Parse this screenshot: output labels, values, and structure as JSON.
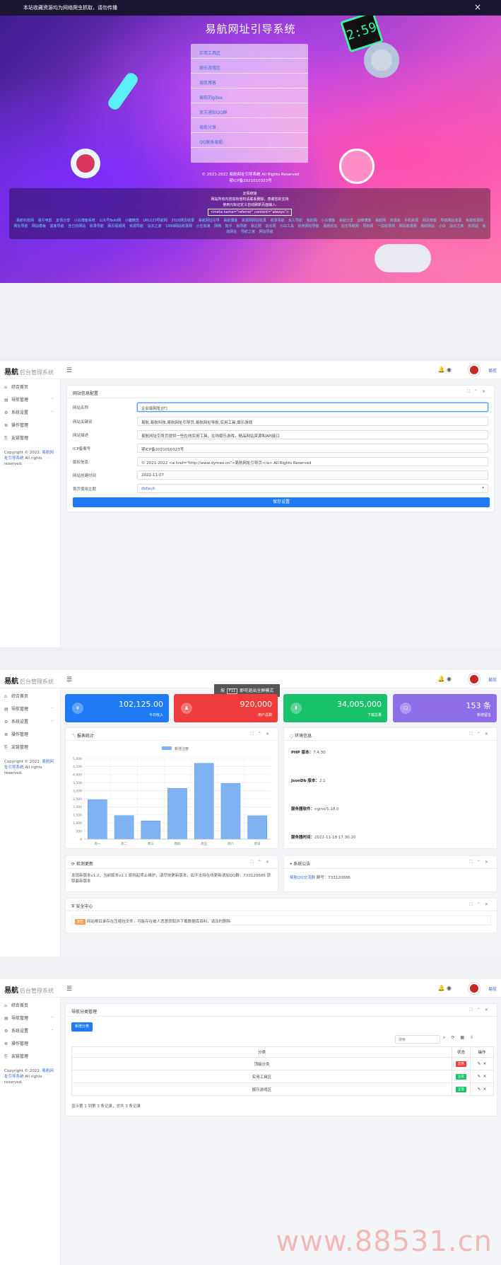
{
  "hero": {
    "notice": "本站收藏资源均为网络爬虫抓取，请勿传播",
    "close": "×",
    "title": "易航网址引导系统",
    "menu": [
      "实用工具区",
      "娱乐游戏区",
      "易航博客",
      "易航的gitee",
      "官方通知QQ群",
      "易航分享",
      "QQ联系易航"
    ],
    "copyright": "© 2021-2022 易航网址引导系统 All Rights Reserved",
    "icp": "鄂ICP备2021010323号",
    "links_title": "友情链接",
    "links_notice": "网站所有内容如有侵权请联系删除，感谢您的支持",
    "links_hint": "使用元标记定义自动刷新页面输入:",
    "meta_code": "<meta name=\"referrer\" content=\"always\">",
    "friends": "易航科技网 强引电影 友情分享 小白博客系统 公众号Boki网 小婕精选 URL123导航网 2020网页收录 易航网址引导 易航博客 资源网网站收录 收录导航 永久导航 我的网 小白博客 易航分享 运维博客 易航网 资源库 手机资源 网页博客 导航网站收录 免费收录网 网址导航 网站模板 黑客导航 自己的网站 收录导航 网页视频网 资源导航 站长之家 1999网站收录网 小五加速 网络 知乎 易导航 易达网 站长网 小白工具 好用网址导航 易航论坛 站长导航网 导航网 一站收录网 网站收录网 易航网站 小白 站长之家 资源站 易航网址 导航之家 网站导航"
  },
  "admin": {
    "logo_main": "易航",
    "logo_sub": "后台管理系统",
    "user": "易航",
    "menu": [
      {
        "icon": "⌂",
        "label": "综合首页",
        "arrow": false
      },
      {
        "icon": "▤",
        "label": "导航管理",
        "arrow": true
      },
      {
        "icon": "⚙",
        "label": "系统设置",
        "arrow": true
      },
      {
        "icon": "≣",
        "label": "操作管理",
        "arrow": false
      },
      {
        "icon": "⎘",
        "label": "友链管理",
        "arrow": false
      }
    ],
    "copyright_pre": "Copyright © 2022.",
    "copyright_link": "易航网址引导系统",
    "copyright_post": "All rights reserved."
  },
  "settings": {
    "title": "网站信息配置",
    "fields": [
      {
        "label": "网站名称",
        "value": "企业级网址[IT]"
      },
      {
        "label": "网站关键词",
        "value": "易航,易航科技,易航网址引导页,易航网址导航,实用工具,娱乐游戏"
      },
      {
        "label": "网站描述",
        "value": "易航网址引导页提供一些在线实用工具，在线娱乐游戏，精品网站资源和API接口"
      },
      {
        "label": "ICP备案号",
        "value": "鄂ICP备2021010323号"
      },
      {
        "label": "版权信息",
        "value": "© 2021-2022 <a href=\"http://www.dymao.cn\">易航网址引导页</a> All Rights Reserved"
      },
      {
        "label": "网站创建时间",
        "value": "2022-11-07"
      },
      {
        "label": "首页使用主题",
        "value": "default"
      }
    ],
    "save": "保存设置"
  },
  "dashboard": {
    "tiles": [
      {
        "value": "102,125.00",
        "label": "今日收入",
        "icon": "¥",
        "color": "#1e7bf5"
      },
      {
        "value": "920,000",
        "label": "用户总数",
        "icon": "♟",
        "color": "#ef3b3b"
      },
      {
        "value": "34,005,000",
        "label": "下载总量",
        "icon": "⬇",
        "color": "#18c26a"
      },
      {
        "value": "153 条",
        "label": "新增留言",
        "icon": "☐",
        "color": "#8d6ee8"
      }
    ],
    "tooltip_pre": "按",
    "tooltip_key": "F11",
    "tooltip_post": "即可退出全屏模式",
    "chart_title": "报表统计",
    "env_title": "环境信息",
    "env": [
      {
        "k": "PHP 版本：",
        "v": "7.4.30"
      },
      {
        "k": "JsonDb 版本：",
        "v": "2.1"
      },
      {
        "k": "服务器软件：",
        "v": "nginx/1.18.0"
      },
      {
        "k": "服务器时间：",
        "v": "2022-11-18 17:30:20"
      }
    ],
    "update_title": "检测更新",
    "update_text": "发现新版本v1.2，当前版本v1.1 原则起项止维护，请尽快更新版本，如不支持在线更新请加QQ群：733120686 获取最新版本",
    "notice_title": "系统公告",
    "notice_link": "易航QQ交流群",
    "notice_text": "群号：733120686",
    "security_title": "安全中心",
    "security_badge": "警告",
    "security_text": "网站根目录存在压缩包文件，可能存在被人恶意获取并下载数据库资料，请及时删除"
  },
  "chart_data": {
    "type": "bar",
    "legend": "新增注册",
    "categories": [
      "周一",
      "周二",
      "周三",
      "周四",
      "周五",
      "周六",
      "周日"
    ],
    "values": [
      2450,
      1460,
      1130,
      3150,
      4700,
      3450,
      1450
    ],
    "ylim": [
      0,
      5000
    ],
    "yticks": [
      "5,000",
      "4,500",
      "4,000",
      "3,500",
      "3,000",
      "2,500",
      "2,000",
      "1,500",
      "1,000",
      "500",
      "0"
    ],
    "color": "#7fb2f0"
  },
  "nav": {
    "title": "导航分类管理",
    "add": "新增分类",
    "search_placeholder": "搜索",
    "headers": [
      "分类",
      "状态",
      "操作"
    ],
    "rows": [
      {
        "name": "顶级分类",
        "status": "禁用",
        "color": "#ef3b3b"
      },
      {
        "name": "实用工具区",
        "status": "正常",
        "color": "#18c26a"
      },
      {
        "name": "娱乐游戏区",
        "status": "正常",
        "color": "#18c26a"
      }
    ],
    "footer": "显示第 1 到第 3 条记录，总共 3 条记录"
  },
  "watermark": "www.88531.cn"
}
